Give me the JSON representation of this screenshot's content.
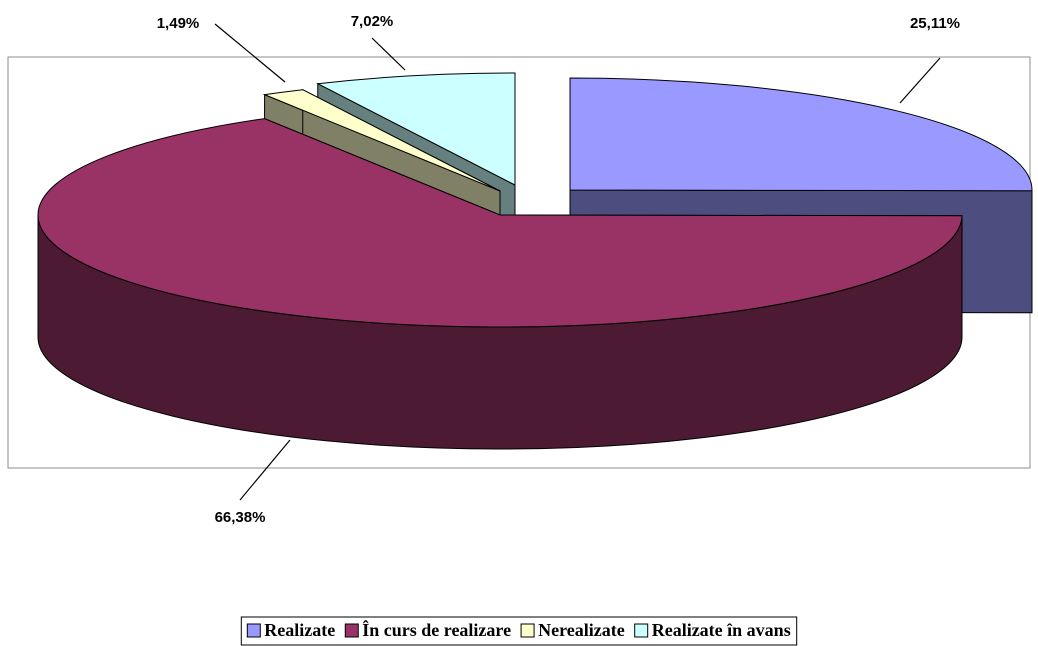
{
  "chart_data": {
    "type": "pie",
    "categories": [
      "Realizate",
      "În curs de realizare",
      "Nerealizate",
      "Realizate în avans"
    ],
    "values": [
      25.11,
      66.38,
      1.49,
      7.02
    ],
    "value_labels": [
      "25,11%",
      "66,38%",
      "1,49%",
      "7,02%"
    ],
    "colors": [
      "#9999ff",
      "#993366",
      "#ffffcc",
      "#ccffff"
    ],
    "legend": "bottom"
  }
}
